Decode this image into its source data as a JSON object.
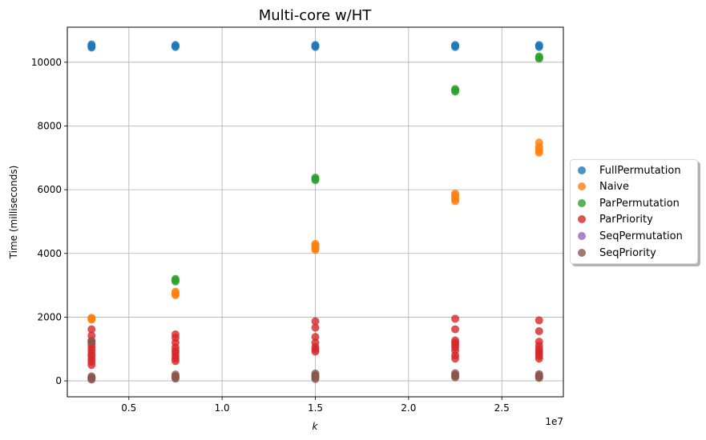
{
  "chart_data": {
    "type": "scatter",
    "title": "Multi-core w/HT",
    "xlabel": "k",
    "ylabel": "Time (milliseconds)",
    "x_offset_label": "1e7",
    "xlim": [
      1700000,
      28300000
    ],
    "ylim": [
      -500,
      11100
    ],
    "x_ticks": [
      5000000,
      10000000,
      15000000,
      20000000,
      25000000
    ],
    "x_tick_labels": [
      "0.5",
      "1.0",
      "1.5",
      "2.0",
      "2.5"
    ],
    "y_ticks": [
      0,
      2000,
      4000,
      6000,
      8000,
      10000
    ],
    "y_tick_labels": [
      "0",
      "2000",
      "4000",
      "6000",
      "8000",
      "10000"
    ],
    "grid": true,
    "legend_position": "center-left outside right",
    "series": [
      {
        "name": "FullPermutation",
        "color": "#1f77b4",
        "points": [
          [
            3000000,
            10560
          ],
          [
            3000000,
            10520
          ],
          [
            3000000,
            10490
          ],
          [
            3000000,
            10460
          ],
          [
            7500000,
            10540
          ],
          [
            7500000,
            10510
          ],
          [
            7500000,
            10480
          ],
          [
            15000000,
            10540
          ],
          [
            15000000,
            10510
          ],
          [
            15000000,
            10480
          ],
          [
            22500000,
            10540
          ],
          [
            22500000,
            10510
          ],
          [
            22500000,
            10480
          ],
          [
            27000000,
            10540
          ],
          [
            27000000,
            10510
          ],
          [
            27000000,
            10480
          ]
        ]
      },
      {
        "name": "Naive",
        "color": "#ff7f0e",
        "points": [
          [
            3000000,
            1980
          ],
          [
            3000000,
            1950
          ],
          [
            3000000,
            1920
          ],
          [
            7500000,
            2800
          ],
          [
            7500000,
            2760
          ],
          [
            7500000,
            2720
          ],
          [
            7500000,
            2690
          ],
          [
            15000000,
            4300
          ],
          [
            15000000,
            4250
          ],
          [
            15000000,
            4200
          ],
          [
            15000000,
            4150
          ],
          [
            15000000,
            4110
          ],
          [
            22500000,
            5880
          ],
          [
            22500000,
            5820
          ],
          [
            22500000,
            5760
          ],
          [
            22500000,
            5700
          ],
          [
            22500000,
            5640
          ],
          [
            27000000,
            7480
          ],
          [
            27000000,
            7350
          ],
          [
            27000000,
            7280
          ],
          [
            27000000,
            7220
          ],
          [
            27000000,
            7160
          ]
        ]
      },
      {
        "name": "ParPermutation",
        "color": "#2ca02c",
        "points": [
          [
            7500000,
            3200
          ],
          [
            7500000,
            3160
          ],
          [
            7500000,
            3120
          ],
          [
            15000000,
            6380
          ],
          [
            15000000,
            6340
          ],
          [
            15000000,
            6300
          ],
          [
            22500000,
            9160
          ],
          [
            22500000,
            9120
          ],
          [
            22500000,
            9080
          ],
          [
            27000000,
            10180
          ],
          [
            27000000,
            10150
          ],
          [
            27000000,
            10110
          ]
        ]
      },
      {
        "name": "ParPriority",
        "color": "#d62728",
        "points": [
          [
            3000000,
            1620
          ],
          [
            3000000,
            1420
          ],
          [
            3000000,
            1250
          ],
          [
            3000000,
            1150
          ],
          [
            3000000,
            1050
          ],
          [
            3000000,
            950
          ],
          [
            3000000,
            850
          ],
          [
            3000000,
            780
          ],
          [
            3000000,
            680
          ],
          [
            3000000,
            600
          ],
          [
            3000000,
            500
          ],
          [
            7500000,
            1460
          ],
          [
            7500000,
            1350
          ],
          [
            7500000,
            1200
          ],
          [
            7500000,
            1050
          ],
          [
            7500000,
            950
          ],
          [
            7500000,
            880
          ],
          [
            7500000,
            780
          ],
          [
            7500000,
            700
          ],
          [
            7500000,
            620
          ],
          [
            15000000,
            1870
          ],
          [
            15000000,
            1670
          ],
          [
            15000000,
            1380
          ],
          [
            15000000,
            1200
          ],
          [
            15000000,
            1060
          ],
          [
            15000000,
            990
          ],
          [
            15000000,
            920
          ],
          [
            22500000,
            1950
          ],
          [
            22500000,
            1620
          ],
          [
            22500000,
            1270
          ],
          [
            22500000,
            1200
          ],
          [
            22500000,
            1130
          ],
          [
            22500000,
            1050
          ],
          [
            22500000,
            950
          ],
          [
            22500000,
            800
          ],
          [
            22500000,
            700
          ],
          [
            27000000,
            1900
          ],
          [
            27000000,
            1560
          ],
          [
            27000000,
            1230
          ],
          [
            27000000,
            1100
          ],
          [
            27000000,
            1000
          ],
          [
            27000000,
            930
          ],
          [
            27000000,
            860
          ],
          [
            27000000,
            780
          ],
          [
            27000000,
            700
          ]
        ]
      },
      {
        "name": "SeqPermutation",
        "color": "#9467bd",
        "points": [
          [
            3000000,
            100
          ],
          [
            7500000,
            130
          ],
          [
            15000000,
            150
          ],
          [
            22500000,
            160
          ],
          [
            27000000,
            140
          ]
        ]
      },
      {
        "name": "SeqPriority",
        "color": "#8c564b",
        "points": [
          [
            3000000,
            1260
          ],
          [
            3000000,
            1220
          ],
          [
            3000000,
            140
          ],
          [
            3000000,
            100
          ],
          [
            3000000,
            70
          ],
          [
            3000000,
            40
          ],
          [
            7500000,
            200
          ],
          [
            7500000,
            150
          ],
          [
            7500000,
            110
          ],
          [
            7500000,
            70
          ],
          [
            15000000,
            230
          ],
          [
            15000000,
            180
          ],
          [
            15000000,
            140
          ],
          [
            15000000,
            100
          ],
          [
            15000000,
            60
          ],
          [
            22500000,
            240
          ],
          [
            22500000,
            190
          ],
          [
            22500000,
            150
          ],
          [
            22500000,
            110
          ],
          [
            27000000,
            210
          ],
          [
            27000000,
            170
          ],
          [
            27000000,
            130
          ],
          [
            27000000,
            90
          ]
        ]
      }
    ]
  }
}
